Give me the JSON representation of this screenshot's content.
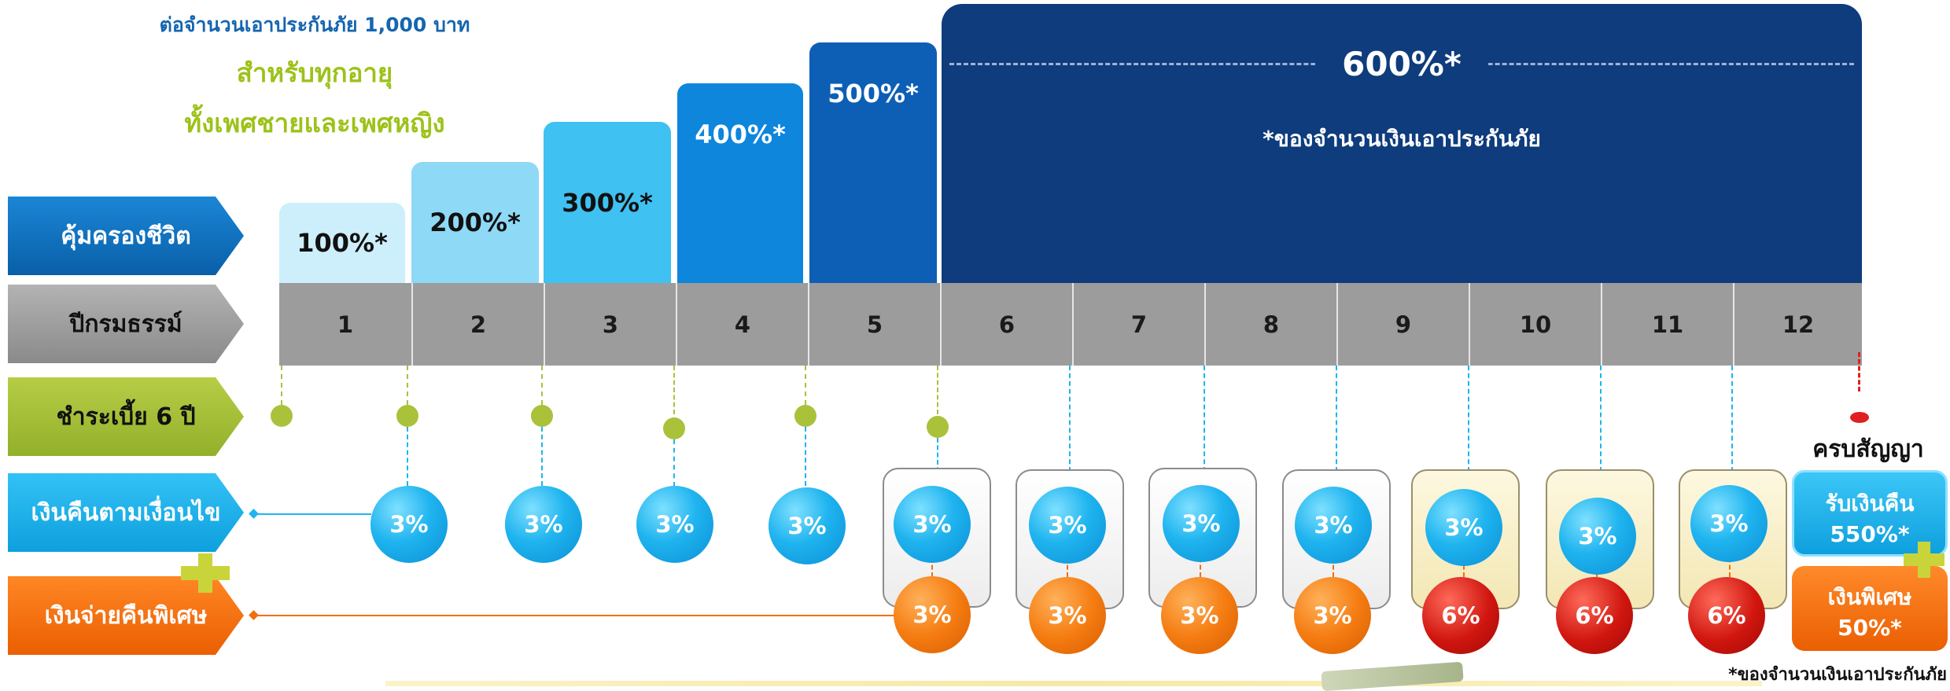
{
  "header": {
    "line1": "ต่อจำนวนเอาประกันภัย 1,000 บาท",
    "line2": "สำหรับทุกอายุ",
    "line3": "ทั้งเพศชายและเพศหญิง"
  },
  "rows": {
    "coverage": "คุ้มครองชีวิต",
    "policy_year": "ปีกรมธรรม์",
    "premium": "ชำระเบี้ย 6 ปี",
    "cashback": "เงินคืนตามเงื่อนไข",
    "special": "เงินจ่ายคืนพิเศษ"
  },
  "coverage_steps": [
    "100%*",
    "200%*",
    "300%*",
    "400%*",
    "500%*"
  ],
  "coverage_final": "600%*",
  "coverage_note": "*ของจำนวนเงินเอาประกันภัย",
  "years": [
    "1",
    "2",
    "3",
    "4",
    "5",
    "6",
    "7",
    "8",
    "9",
    "10",
    "11",
    "12"
  ],
  "cashback_values": [
    "3%",
    "3%",
    "3%",
    "3%",
    "3%",
    "3%",
    "3%",
    "3%",
    "3%",
    "3%",
    "3%"
  ],
  "special_values": [
    "3%",
    "3%",
    "3%",
    "3%",
    "6%",
    "6%",
    "6%"
  ],
  "maturity": {
    "title": "ครบสัญญา",
    "refund_label": "รับเงินคืน",
    "refund_value": "550%*",
    "bonus_label": "เงินพิเศษ",
    "bonus_value": "50%*",
    "footnote": "*ของจำนวนเงินเอาประกันภัย"
  },
  "colors": {
    "blue_label": "#0c6fc1",
    "gray_label": "#9a9a9a",
    "green_label": "#a6c239",
    "cyan_label": "#1fb4ef",
    "orange_label": "#f26f0c",
    "navy": "#0e3c7c"
  }
}
